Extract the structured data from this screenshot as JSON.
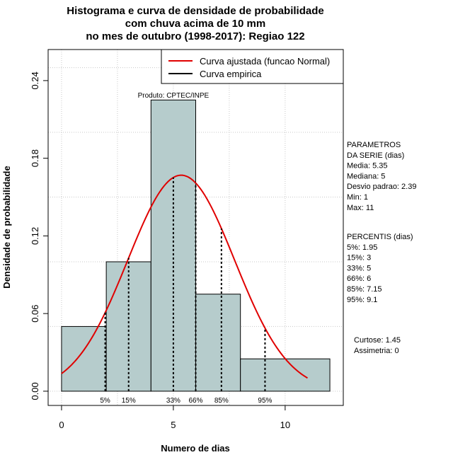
{
  "chart_data": {
    "type": "histogram",
    "title_lines": [
      "Histograma e curva de densidade de probabilidade",
      "com chuva acima de 10 mm",
      "no mes de outubro (1998-2017): Regiao 122"
    ],
    "xlabel": "Numero de dias",
    "ylabel": "Densidade de probabilidade",
    "xlim": [
      -0.6,
      12.6
    ],
    "ylim": [
      -0.011,
      0.264
    ],
    "x_ticks": [
      0,
      5,
      10
    ],
    "x_tick_labels": [
      "0",
      "5",
      "10"
    ],
    "y_ticks": [
      0.0,
      0.06,
      0.12,
      0.18,
      0.24
    ],
    "y_tick_labels": [
      "0.00",
      "0.06",
      "0.12",
      "0.18",
      "0.24"
    ],
    "grid_x": [
      0,
      2.5,
      5,
      7.5,
      10
    ],
    "grid_y": [
      0.0,
      0.05,
      0.1,
      0.15,
      0.2,
      0.25
    ],
    "bins": [
      {
        "start": 0,
        "end": 2,
        "density": 0.05
      },
      {
        "start": 2,
        "end": 4,
        "density": 0.1
      },
      {
        "start": 4,
        "end": 6,
        "density": 0.225
      },
      {
        "start": 6,
        "end": 8,
        "density": 0.075
      },
      {
        "start": 8,
        "end": 12,
        "density": 0.025
      }
    ],
    "bar_color": "#b6cccc",
    "curve_color": "#e00000",
    "normal_fit": {
      "mean": 5.35,
      "sd": 2.39,
      "x_from": 0,
      "x_to": 11
    },
    "annotation": "Produto: CPTEC/INPE",
    "legend": [
      {
        "label": "Curva ajustada (funcao Normal)",
        "color": "#e00000"
      },
      {
        "label": "Curva empirica",
        "color": "#000000"
      }
    ],
    "legend_position": "top-right",
    "percentile_lines": [
      {
        "label": "5%",
        "value": 1.95
      },
      {
        "label": "15%",
        "value": 3
      },
      {
        "label": "33%",
        "value": 5
      },
      {
        "label": "66%",
        "value": 6
      },
      {
        "label": "85%",
        "value": 7.15
      },
      {
        "label": "95%",
        "value": 9.1
      }
    ]
  },
  "side_panel": {
    "parametros_lines": [
      "PARAMETROS",
      "DA SERIE (dias)",
      "  Media: 5.35",
      "  Mediana: 5",
      "  Desvio padrao: 2.39",
      "  Min: 1",
      "  Max: 11"
    ],
    "percentis_lines": [
      "PERCENTIS (dias)",
      "  5%: 1.95",
      "  15%: 3",
      "  33%: 5",
      "  66%: 6",
      "  85%: 7.15",
      "  95%: 9.1"
    ],
    "stats_lines": [
      "Curtose: 1.45",
      "  Assimetria: 0"
    ]
  }
}
